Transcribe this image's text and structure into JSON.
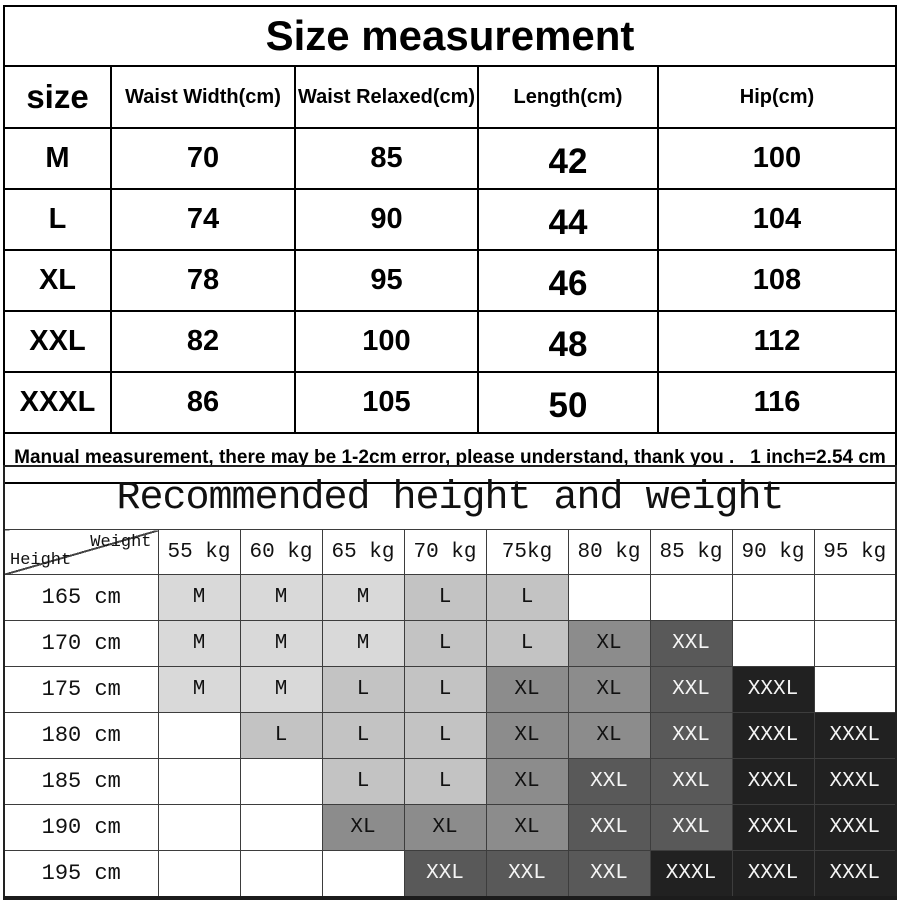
{
  "size_table": {
    "title": "Size measurement",
    "columns": [
      "size",
      "Waist Width(cm)",
      "Waist Relaxed(cm)",
      "Length(cm)",
      "Hip(cm)"
    ],
    "rows": [
      {
        "size": "M",
        "values": [
          "70",
          "85",
          "42",
          "100"
        ]
      },
      {
        "size": "L",
        "values": [
          "74",
          "90",
          "44",
          "104"
        ]
      },
      {
        "size": "XL",
        "values": [
          "78",
          "95",
          "46",
          "108"
        ]
      },
      {
        "size": "XXL",
        "values": [
          "82",
          "100",
          "48",
          "112"
        ]
      },
      {
        "size": "XXXL",
        "values": [
          "86",
          "105",
          "50",
          "116"
        ]
      }
    ],
    "note": "Manual measurement, there may be 1-2cm error, please understand, thank you .   1 inch=2.54 cm"
  },
  "recommend_table": {
    "title": "Recommended height and weight",
    "corner": {
      "height_label": "Height",
      "weight_label": "Weight"
    },
    "weight_columns": [
      "55 kg",
      "60 kg",
      "65 kg",
      "70 kg",
      "75kg",
      "80 kg",
      "85 kg",
      "90 kg",
      "95 kg"
    ],
    "height_rows": [
      {
        "height": "165 cm",
        "cells": [
          "M",
          "M",
          "M",
          "L",
          "L",
          "",
          "",
          "",
          ""
        ]
      },
      {
        "height": "170 cm",
        "cells": [
          "M",
          "M",
          "M",
          "L",
          "L",
          "XL",
          "XXL",
          "",
          ""
        ]
      },
      {
        "height": "175 cm",
        "cells": [
          "M",
          "M",
          "L",
          "L",
          "XL",
          "XL",
          "XXL",
          "XXXL",
          ""
        ]
      },
      {
        "height": "180 cm",
        "cells": [
          "",
          "L",
          "L",
          "L",
          "XL",
          "XL",
          "XXL",
          "XXXL",
          "XXXL"
        ]
      },
      {
        "height": "185 cm",
        "cells": [
          "",
          "",
          "L",
          "L",
          "XL",
          "XXL",
          "XXL",
          "XXXL",
          "XXXL"
        ]
      },
      {
        "height": "190 cm",
        "cells": [
          "",
          "",
          "XL",
          "XL",
          "XL",
          "XXL",
          "XXL",
          "XXXL",
          "XXXL"
        ]
      },
      {
        "height": "195 cm",
        "cells": [
          "",
          "",
          "",
          "XXL",
          "XXL",
          "XXL",
          "XXXL",
          "XXXL",
          "XXXL"
        ]
      }
    ],
    "grade_colors": {
      "M": {
        "bg": "#d9d9d9",
        "fg": "#111111"
      },
      "L": {
        "bg": "#c3c3c3",
        "fg": "#111111"
      },
      "XL": {
        "bg": "#8c8c8c",
        "fg": "#111111"
      },
      "XXL": {
        "bg": "#595959",
        "fg": "#f5f5f5"
      },
      "XXXL": {
        "bg": "#212121",
        "fg": "#f5f5f5"
      }
    }
  }
}
